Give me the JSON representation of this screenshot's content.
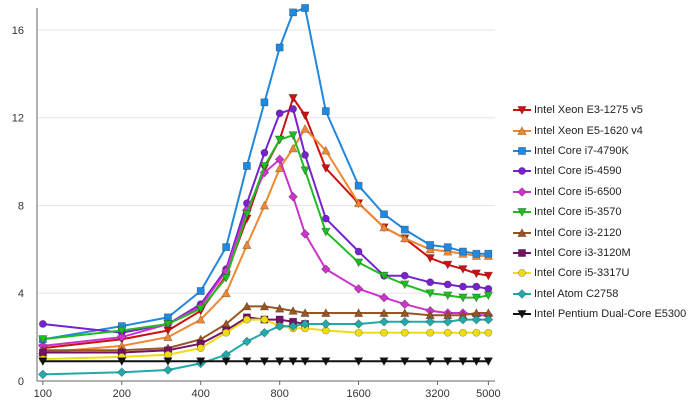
{
  "chart_data": {
    "type": "line",
    "title": "",
    "xlabel": "",
    "ylabel": "",
    "x_scale": "log",
    "x_ticks": [
      100,
      200,
      400,
      800,
      1600,
      3200,
      5000
    ],
    "x_tick_labels": [
      "100",
      "200",
      "400",
      "800",
      "1600",
      "3200",
      "5000"
    ],
    "y_ticks": [
      0,
      4,
      8,
      12,
      16
    ],
    "y_tick_labels": [
      "0",
      "4",
      "8",
      "12",
      "16"
    ],
    "xlim": [
      95,
      5300
    ],
    "ylim": [
      0,
      17
    ],
    "grid": "horizontal",
    "legend_position": "right",
    "series": [
      {
        "name": "Intel Xeon E3-1275 v5",
        "color": "#cc1111",
        "marker": "triangle-down",
        "x": [
          100,
          200,
          300,
          400,
          500,
          600,
          700,
          800,
          900,
          1000,
          1200,
          1600,
          2000,
          2400,
          3000,
          3500,
          4000,
          4500,
          5000
        ],
        "y": [
          1.5,
          1.9,
          2.3,
          3.2,
          4.8,
          7.4,
          9.7,
          11.0,
          12.9,
          12.1,
          9.7,
          8.1,
          7.0,
          6.5,
          5.6,
          5.3,
          5.1,
          4.9,
          4.8
        ]
      },
      {
        "name": "Intel Xeon E5-1620 v4",
        "color": "#ee8833",
        "marker": "triangle-up",
        "x": [
          100,
          200,
          300,
          400,
          500,
          600,
          700,
          800,
          900,
          1000,
          1200,
          1600,
          2000,
          2400,
          3000,
          3500,
          4000,
          4500,
          5000
        ],
        "y": [
          1.3,
          1.6,
          2.0,
          2.8,
          4.0,
          6.2,
          8.0,
          9.7,
          10.6,
          11.5,
          10.5,
          8.1,
          7.0,
          6.5,
          6.0,
          5.9,
          5.8,
          5.7,
          5.7
        ]
      },
      {
        "name": "Intel Core i7-4790K",
        "color": "#2288dd",
        "marker": "square",
        "x": [
          100,
          200,
          300,
          400,
          500,
          600,
          700,
          800,
          900,
          1000,
          1200,
          1600,
          2000,
          2400,
          3000,
          3500,
          4000,
          4500,
          5000
        ],
        "y": [
          1.9,
          2.5,
          2.9,
          4.1,
          6.1,
          9.8,
          12.7,
          15.2,
          16.8,
          17.0,
          12.3,
          8.9,
          7.6,
          6.9,
          6.2,
          6.1,
          5.9,
          5.8,
          5.8
        ]
      },
      {
        "name": "Intel Core i5-4590",
        "color": "#7722cc",
        "marker": "circle",
        "x": [
          100,
          200,
          300,
          400,
          500,
          600,
          700,
          800,
          900,
          1000,
          1200,
          1600,
          2000,
          2400,
          3000,
          3500,
          4000,
          4500,
          5000
        ],
        "y": [
          2.6,
          2.2,
          2.6,
          3.5,
          5.1,
          8.1,
          10.4,
          12.2,
          12.4,
          10.3,
          7.4,
          5.9,
          4.8,
          4.8,
          4.5,
          4.4,
          4.3,
          4.3,
          4.2
        ]
      },
      {
        "name": "Intel Core i5-6500",
        "color": "#cc33cc",
        "marker": "diamond",
        "x": [
          100,
          200,
          300,
          400,
          500,
          600,
          700,
          800,
          900,
          1000,
          1200,
          1600,
          2000,
          2400,
          3000,
          3500,
          4000,
          4500,
          5000
        ],
        "y": [
          1.6,
          2.0,
          2.6,
          3.4,
          5.0,
          7.8,
          9.5,
          10.1,
          8.4,
          6.7,
          5.1,
          4.2,
          3.8,
          3.5,
          3.2,
          3.1,
          3.1,
          3.0,
          3.0
        ]
      },
      {
        "name": "Intel Core i5-3570",
        "color": "#22bb22",
        "marker": "triangle-down",
        "x": [
          100,
          200,
          300,
          400,
          500,
          600,
          700,
          800,
          900,
          1000,
          1200,
          1600,
          2000,
          2400,
          3000,
          3500,
          4000,
          4500,
          5000
        ],
        "y": [
          1.9,
          2.3,
          2.6,
          3.3,
          4.7,
          7.6,
          9.8,
          11.0,
          11.2,
          9.6,
          6.8,
          5.4,
          4.8,
          4.4,
          4.0,
          3.9,
          3.8,
          3.8,
          3.9
        ]
      },
      {
        "name": "Intel Core i3-2120",
        "color": "#995522",
        "marker": "triangle-up",
        "x": [
          100,
          200,
          300,
          400,
          500,
          600,
          700,
          800,
          900,
          1000,
          1200,
          1600,
          2000,
          2400,
          3000,
          3500,
          4000,
          4500,
          5000
        ],
        "y": [
          1.4,
          1.4,
          1.5,
          1.9,
          2.6,
          3.4,
          3.4,
          3.3,
          3.2,
          3.1,
          3.1,
          3.1,
          3.1,
          3.1,
          3.0,
          3.0,
          3.0,
          3.1,
          3.1
        ]
      },
      {
        "name": "Intel Core i3-3120M",
        "color": "#771166",
        "marker": "square",
        "x": [
          100,
          200,
          300,
          400,
          500,
          600,
          700,
          800,
          900,
          1000
        ],
        "y": [
          1.3,
          1.3,
          1.4,
          1.7,
          2.3,
          2.9,
          2.8,
          2.8,
          2.7,
          2.6
        ]
      },
      {
        "name": "Intel Core i5-3317U",
        "color": "#eedd11",
        "marker": "circle",
        "x": [
          100,
          200,
          300,
          400,
          500,
          600,
          700,
          800,
          900,
          1000,
          1200,
          1600,
          2000,
          2400,
          3000,
          3500,
          4000,
          4500,
          5000
        ],
        "y": [
          1.0,
          1.1,
          1.2,
          1.5,
          2.2,
          2.8,
          2.8,
          2.5,
          2.4,
          2.4,
          2.3,
          2.2,
          2.2,
          2.2,
          2.2,
          2.2,
          2.2,
          2.2,
          2.2
        ]
      },
      {
        "name": "Intel Atom C2758",
        "color": "#22aaaa",
        "marker": "diamond",
        "x": [
          100,
          200,
          300,
          400,
          500,
          600,
          700,
          800,
          900,
          1000,
          1200,
          1600,
          2000,
          2400,
          3000,
          3500,
          4000,
          4500,
          5000
        ],
        "y": [
          0.3,
          0.4,
          0.5,
          0.8,
          1.2,
          1.8,
          2.2,
          2.5,
          2.5,
          2.6,
          2.6,
          2.6,
          2.7,
          2.7,
          2.7,
          2.7,
          2.8,
          2.8,
          2.8
        ]
      },
      {
        "name": "Intel Pentium Dual-Core E5300",
        "color": "#111111",
        "marker": "triangle-down",
        "x": [
          100,
          200,
          300,
          400,
          500,
          600,
          700,
          800,
          900,
          1000,
          1200,
          1600,
          2000,
          2400,
          3000,
          3500,
          4000,
          4500,
          5000
        ],
        "y": [
          0.9,
          0.9,
          0.9,
          0.9,
          0.9,
          0.9,
          0.9,
          0.9,
          0.9,
          0.9,
          0.9,
          0.9,
          0.9,
          0.9,
          0.9,
          0.9,
          0.9,
          0.9,
          0.9
        ]
      }
    ]
  }
}
